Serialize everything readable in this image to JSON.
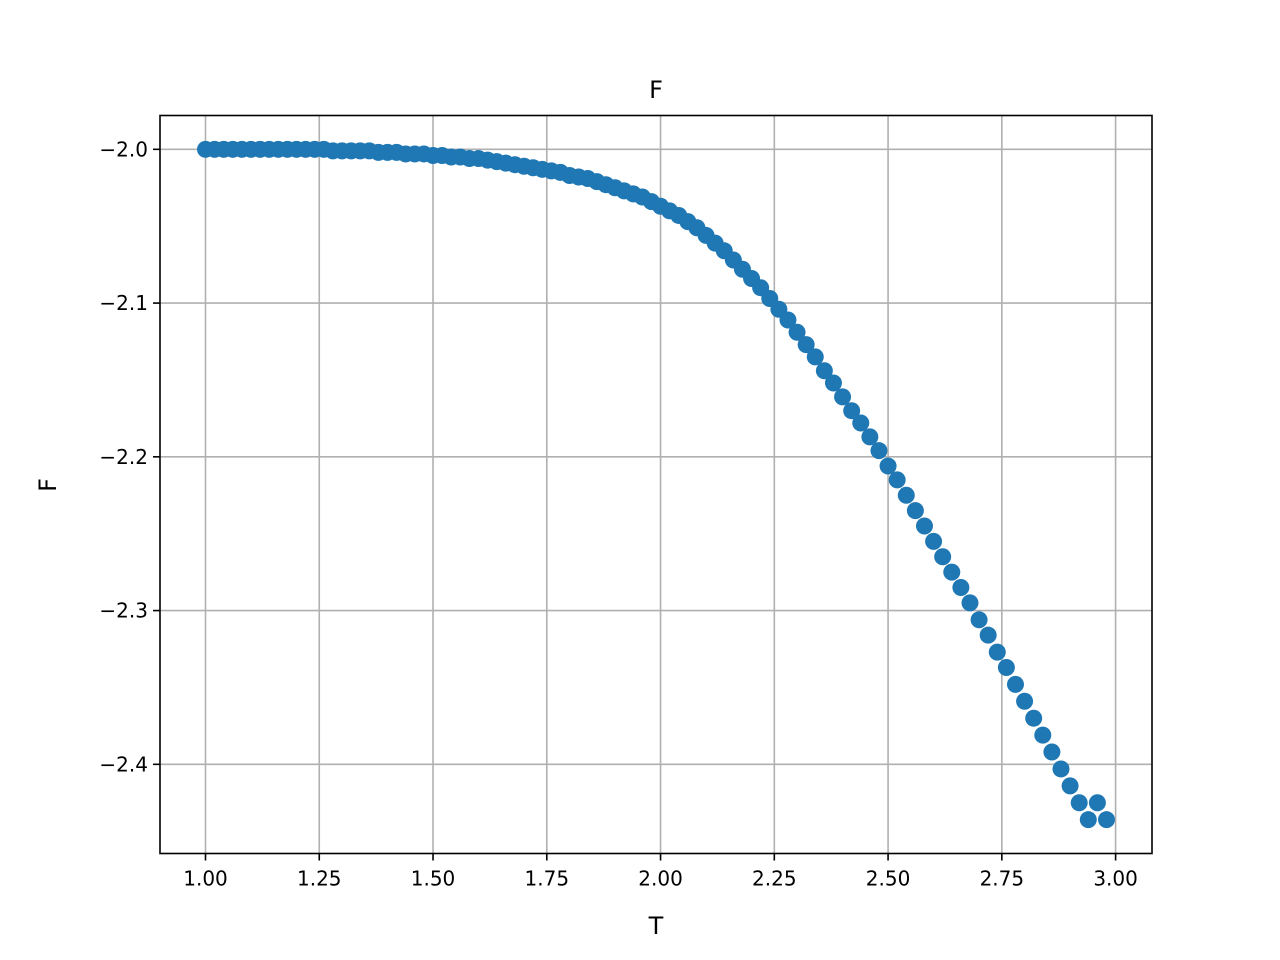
{
  "chart_data": {
    "type": "scatter",
    "title": "F",
    "xlabel": "T",
    "ylabel": "F",
    "xlim": [
      0.9,
      3.08
    ],
    "ylim": [
      -2.458,
      -1.978
    ],
    "grid": true,
    "xticks": [
      1.0,
      1.25,
      1.5,
      1.75,
      2.0,
      2.25,
      2.5,
      2.75,
      3.0
    ],
    "xtick_labels": [
      "1.00",
      "1.25",
      "1.50",
      "1.75",
      "2.00",
      "2.25",
      "2.50",
      "2.75",
      "3.00"
    ],
    "yticks": [
      -2.0,
      -2.1,
      -2.2,
      -2.3,
      -2.4
    ],
    "ytick_labels": [
      "−2.0",
      "−2.1",
      "−2.2",
      "−2.3",
      "−2.4"
    ],
    "marker_color": "#1f77b4",
    "series": [
      {
        "x": [
          1.0,
          1.02,
          1.04,
          1.06,
          1.08,
          1.1,
          1.12,
          1.14,
          1.16,
          1.18,
          1.2,
          1.22,
          1.24,
          1.26,
          1.28,
          1.3,
          1.32,
          1.34,
          1.36,
          1.38,
          1.4,
          1.42,
          1.44,
          1.46,
          1.48,
          1.5,
          1.52,
          1.54,
          1.56,
          1.58,
          1.6,
          1.62,
          1.64,
          1.66,
          1.68,
          1.7,
          1.72,
          1.74,
          1.76,
          1.78,
          1.8,
          1.82,
          1.84,
          1.86,
          1.88,
          1.9,
          1.92,
          1.94,
          1.96,
          1.98,
          2.0,
          2.02,
          2.04,
          2.06,
          2.08,
          2.1,
          2.12,
          2.14,
          2.16,
          2.18,
          2.2,
          2.22,
          2.24,
          2.26,
          2.28,
          2.3,
          2.32,
          2.34,
          2.36,
          2.38,
          2.4,
          2.42,
          2.44,
          2.46,
          2.48,
          2.5,
          2.52,
          2.54,
          2.56,
          2.58,
          2.6,
          2.62,
          2.64,
          2.66,
          2.68,
          2.7,
          2.72,
          2.74,
          2.76,
          2.78,
          2.8,
          2.82,
          2.84,
          2.86,
          2.88,
          2.9,
          2.92,
          2.94,
          2.96,
          2.98
        ],
        "y": [
          -2.0,
          -2.0,
          -2.0,
          -2.0,
          -2.0,
          -2.0,
          -2.0,
          -2.0,
          -2.0,
          -2.0,
          -2.0,
          -2.0,
          -2.0,
          -2.0,
          -2.001,
          -2.001,
          -2.001,
          -2.001,
          -2.001,
          -2.002,
          -2.002,
          -2.002,
          -2.003,
          -2.003,
          -2.003,
          -2.004,
          -2.004,
          -2.005,
          -2.005,
          -2.006,
          -2.006,
          -2.007,
          -2.008,
          -2.009,
          -2.01,
          -2.011,
          -2.012,
          -2.013,
          -2.014,
          -2.015,
          -2.017,
          -2.018,
          -2.019,
          -2.021,
          -2.023,
          -2.025,
          -2.027,
          -2.029,
          -2.031,
          -2.034,
          -2.037,
          -2.04,
          -2.043,
          -2.047,
          -2.051,
          -2.056,
          -2.061,
          -2.066,
          -2.072,
          -2.078,
          -2.084,
          -2.09,
          -2.097,
          -2.104,
          -2.111,
          -2.119,
          -2.127,
          -2.135,
          -2.144,
          -2.152,
          -2.161,
          -2.17,
          -2.178,
          -2.187,
          -2.196,
          -2.206,
          -2.215,
          -2.225,
          -2.235,
          -2.245,
          -2.255,
          -2.265,
          -2.275,
          -2.285,
          -2.295,
          -2.306,
          -2.316,
          -2.327,
          -2.337,
          -2.348,
          -2.359,
          -2.37,
          -2.381,
          -2.392,
          -2.403,
          -2.414,
          -2.425,
          -2.436,
          -2.425,
          -2.436
        ]
      }
    ]
  }
}
